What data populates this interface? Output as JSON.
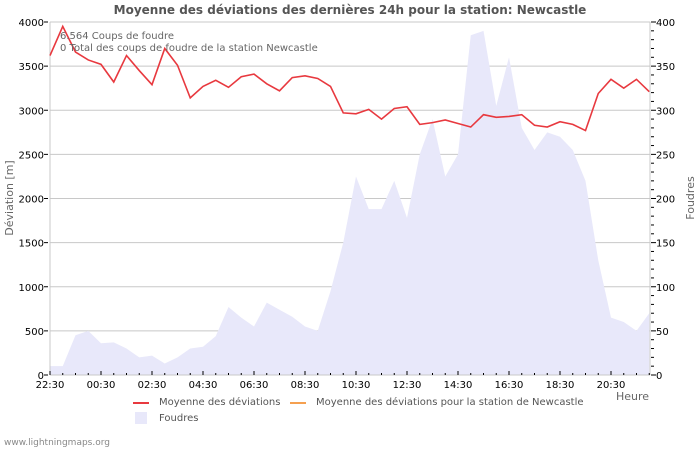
{
  "chart_data": {
    "type": "line+area",
    "title": "Moyenne des déviations des dernières 24h pour la station: Newcastle",
    "xlabel": "Heure",
    "ylabel": "Déviation  [m]",
    "y2label": "Foudres",
    "ylim": [
      0,
      4000
    ],
    "y2lim": [
      0,
      400
    ],
    "yticks": [
      0,
      500,
      1000,
      1500,
      2000,
      2500,
      3000,
      3500,
      4000
    ],
    "y2ticks": [
      0,
      50,
      100,
      150,
      200,
      250,
      300,
      350,
      400
    ],
    "xticks": [
      "22:30",
      "00:30",
      "02:30",
      "04:30",
      "06:30",
      "08:30",
      "10:30",
      "12:30",
      "14:30",
      "16:30",
      "18:30",
      "20:30"
    ],
    "grid": true,
    "annotations": [
      "6.564  Coups de foudre",
      "0 Total des coups de foudre de la station Newcastle"
    ],
    "legend": [
      {
        "label": "Moyenne des déviations",
        "type": "line",
        "color": "#e8393f"
      },
      {
        "label": "Moyenne des déviations pour la station de Newcastle",
        "type": "line",
        "color": "#f5a050"
      },
      {
        "label": "Foudres",
        "type": "area",
        "color": "#e8e8fa"
      }
    ],
    "x_step_minutes": 30,
    "x_start": "22:30",
    "series": [
      {
        "name": "Moyenne des déviations",
        "axis": "left",
        "values": [
          3620,
          3950,
          3660,
          3570,
          3520,
          3320,
          3620,
          3450,
          3290,
          3700,
          3510,
          3140,
          3270,
          3340,
          3260,
          3380,
          3410,
          3300,
          3220,
          3370,
          3390,
          3360,
          3270,
          2970,
          2960,
          3010,
          2900,
          3020,
          3040,
          2840,
          2860,
          2890,
          2850,
          2810,
          2950,
          2920,
          2930,
          2950,
          2830,
          2810,
          2870,
          2840,
          2770,
          3190,
          3350,
          3250,
          3350,
          3210
        ]
      },
      {
        "name": "Moyenne des déviations pour la station de Newcastle",
        "axis": "left",
        "values": []
      },
      {
        "name": "Foudres",
        "axis": "right",
        "values": [
          10,
          10,
          45,
          50,
          36,
          37,
          30,
          20,
          22,
          13,
          20,
          30,
          32,
          44,
          77,
          65,
          55,
          82,
          74,
          66,
          55,
          50,
          95,
          150,
          225,
          188,
          188,
          220,
          178,
          250,
          290,
          225,
          250,
          385,
          390,
          305,
          360,
          280,
          255,
          275,
          270,
          255,
          220,
          130,
          65,
          60,
          50,
          70
        ]
      }
    ]
  },
  "footer": {
    "credit": "www.lightningmaps.org"
  }
}
